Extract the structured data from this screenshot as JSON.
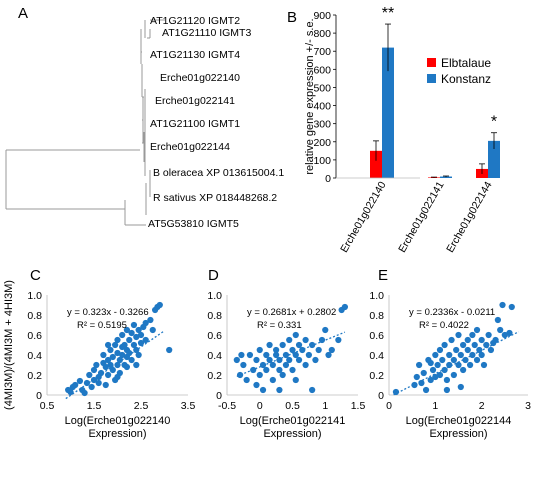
{
  "panel_letters": [
    "A",
    "B",
    "C",
    "D",
    "E"
  ],
  "tree": {
    "leaves": [
      "AT1G21120 IGMT2",
      "AT1G21110 IGMT3",
      "AT1G21130 IGMT4",
      "Erche01g022140",
      "Erche01g022141",
      "AT1G21100 IGMT1",
      "Erche01g022144",
      "B oleracea XP 013615004.1",
      "R sativus XP 018448268.2",
      "AT5G53810 IGMT5"
    ]
  },
  "colors": {
    "elbtalaue": "#ff0000",
    "konstanz": "#1f78c4",
    "points": "#1f78c4",
    "axis": "#000000"
  },
  "chart_data": [
    {
      "type": "bar",
      "panel": "B",
      "categories": [
        "Erche01g022140",
        "Erche01g022141",
        "Erche01g022144"
      ],
      "series": [
        {
          "name": "Elbtalaue",
          "values": [
            150,
            3,
            50
          ],
          "errors": [
            55,
            2,
            28
          ]
        },
        {
          "name": "Konstanz",
          "values": [
            720,
            8,
            205
          ],
          "errors": [
            130,
            3,
            45
          ]
        }
      ],
      "significance": [
        "**",
        "",
        "*"
      ],
      "ylabel": "relative gene expression +/- s.e.",
      "ylim": [
        0,
        900
      ],
      "yticks": [
        0,
        100,
        200,
        300,
        400,
        500,
        600,
        700,
        800,
        900
      ],
      "legend_position": "right",
      "grid": false
    },
    {
      "type": "scatter",
      "panel": "C",
      "xlabel": "Log(Erche01g022140 Expression)",
      "ylabel": "(4MI3M)/(4MI3M + 4HI3M)",
      "xlim": [
        0.5,
        3.5
      ],
      "ylim": [
        0,
        1
      ],
      "xticks": [
        "0.5",
        "1.5",
        "2.5",
        "3.5"
      ],
      "yticks": [
        "0",
        "0.2",
        "0.4",
        "0.6",
        "0.8",
        "1.0"
      ],
      "equation": "y = 0.323x - 0.3266",
      "r2": "R² = 0.5195",
      "trend": {
        "slope": 0.323,
        "intercept": -0.3266,
        "x_range": [
          0.9,
          3.0
        ]
      },
      "points": [
        [
          0.95,
          0.05
        ],
        [
          1.0,
          0.03
        ],
        [
          1.05,
          0.08
        ],
        [
          1.1,
          0.1
        ],
        [
          1.2,
          0.14
        ],
        [
          1.25,
          0.05
        ],
        [
          1.3,
          0.02
        ],
        [
          1.35,
          0.12
        ],
        [
          1.4,
          0.2
        ],
        [
          1.45,
          0.08
        ],
        [
          1.5,
          0.15
        ],
        [
          1.5,
          0.25
        ],
        [
          1.55,
          0.3
        ],
        [
          1.6,
          0.18
        ],
        [
          1.6,
          0.12
        ],
        [
          1.65,
          0.22
        ],
        [
          1.7,
          0.32
        ],
        [
          1.7,
          0.4
        ],
        [
          1.75,
          0.1
        ],
        [
          1.75,
          0.28
        ],
        [
          1.8,
          0.35
        ],
        [
          1.8,
          0.2
        ],
        [
          1.85,
          0.45
        ],
        [
          1.85,
          0.3
        ],
        [
          1.9,
          0.25
        ],
        [
          1.9,
          0.38
        ],
        [
          1.95,
          0.5
        ],
        [
          1.95,
          0.15
        ],
        [
          2.0,
          0.3
        ],
        [
          2.0,
          0.42
        ],
        [
          2.0,
          0.55
        ],
        [
          2.05,
          0.35
        ],
        [
          2.05,
          0.22
        ],
        [
          2.1,
          0.48
        ],
        [
          2.1,
          0.4
        ],
        [
          2.1,
          0.6
        ],
        [
          2.15,
          0.3
        ],
        [
          2.15,
          0.5
        ],
        [
          2.2,
          0.38
        ],
        [
          2.2,
          0.45
        ],
        [
          2.2,
          0.28
        ],
        [
          2.25,
          0.55
        ],
        [
          2.25,
          0.42
        ],
        [
          2.3,
          0.62
        ],
        [
          2.3,
          0.35
        ],
        [
          2.35,
          0.5
        ],
        [
          2.35,
          0.7
        ],
        [
          2.4,
          0.45
        ],
        [
          2.4,
          0.58
        ],
        [
          2.45,
          0.65
        ],
        [
          2.45,
          0.4
        ],
        [
          2.5,
          0.52
        ],
        [
          2.5,
          0.6
        ],
        [
          2.55,
          0.68
        ],
        [
          2.6,
          0.72
        ],
        [
          2.6,
          0.55
        ],
        [
          2.7,
          0.75
        ],
        [
          2.75,
          0.65
        ],
        [
          2.8,
          0.85
        ],
        [
          2.85,
          0.88
        ],
        [
          2.9,
          0.9
        ],
        [
          3.1,
          0.45
        ],
        [
          2.0,
          0.18
        ],
        [
          1.8,
          0.5
        ],
        [
          2.2,
          0.65
        ],
        [
          2.4,
          0.3
        ]
      ]
    },
    {
      "type": "scatter",
      "panel": "D",
      "xlabel": "Log(Erche01g022141 Expression)",
      "xlim": [
        -0.5,
        1.5
      ],
      "ylim": [
        0,
        1
      ],
      "xticks": [
        "-0.5",
        "0",
        "0.5",
        "1",
        "1.5"
      ],
      "yticks": [
        "0",
        "0.2",
        "0.4",
        "0.6",
        "0.8",
        "1.0"
      ],
      "equation": "y = 0.2681x + 0.2802",
      "r2": "R² = 0.331",
      "trend": {
        "slope": 0.2681,
        "intercept": 0.2802,
        "x_range": [
          -0.35,
          1.3
        ]
      },
      "points": [
        [
          -0.35,
          0.35
        ],
        [
          -0.3,
          0.2
        ],
        [
          -0.28,
          0.4
        ],
        [
          -0.25,
          0.3
        ],
        [
          -0.2,
          0.15
        ],
        [
          -0.15,
          0.4
        ],
        [
          -0.1,
          0.25
        ],
        [
          -0.05,
          0.1
        ],
        [
          -0.05,
          0.35
        ],
        [
          0.0,
          0.2
        ],
        [
          0.0,
          0.45
        ],
        [
          0.05,
          0.3
        ],
        [
          0.05,
          0.05
        ],
        [
          0.1,
          0.4
        ],
        [
          0.1,
          0.25
        ],
        [
          0.15,
          0.35
        ],
        [
          0.15,
          0.5
        ],
        [
          0.2,
          0.3
        ],
        [
          0.2,
          0.15
        ],
        [
          0.25,
          0.45
        ],
        [
          0.25,
          0.4
        ],
        [
          0.3,
          0.35
        ],
        [
          0.3,
          0.25
        ],
        [
          0.35,
          0.5
        ],
        [
          0.35,
          0.2
        ],
        [
          0.4,
          0.4
        ],
        [
          0.4,
          0.3
        ],
        [
          0.45,
          0.55
        ],
        [
          0.45,
          0.35
        ],
        [
          0.5,
          0.45
        ],
        [
          0.5,
          0.25
        ],
        [
          0.55,
          0.4
        ],
        [
          0.55,
          0.6
        ],
        [
          0.6,
          0.35
        ],
        [
          0.6,
          0.5
        ],
        [
          0.65,
          0.45
        ],
        [
          0.7,
          0.3
        ],
        [
          0.7,
          0.55
        ],
        [
          0.75,
          0.4
        ],
        [
          0.8,
          0.5
        ],
        [
          0.8,
          0.05
        ],
        [
          0.85,
          0.35
        ],
        [
          0.9,
          0.45
        ],
        [
          0.95,
          0.55
        ],
        [
          1.0,
          0.65
        ],
        [
          1.05,
          0.4
        ],
        [
          1.1,
          0.45
        ],
        [
          1.2,
          0.55
        ],
        [
          1.25,
          0.85
        ],
        [
          1.3,
          0.88
        ],
        [
          0.3,
          0.05
        ],
        [
          0.55,
          0.15
        ]
      ]
    },
    {
      "type": "scatter",
      "panel": "E",
      "xlabel": "Log(Erche01g022144 Expression)",
      "xlim": [
        0,
        3
      ],
      "ylim": [
        0,
        1
      ],
      "xticks": [
        "0",
        "1",
        "2",
        "3"
      ],
      "yticks": [
        "0",
        "0.2",
        "0.4",
        "0.6",
        "0.8",
        "1.0"
      ],
      "equation": "y = 0.2336x - 0.0211",
      "r2": "R² = 0.4022",
      "trend": {
        "slope": 0.2336,
        "intercept": -0.0211,
        "x_range": [
          0.1,
          2.8
        ]
      },
      "points": [
        [
          0.15,
          0.03
        ],
        [
          0.55,
          0.1
        ],
        [
          0.6,
          0.18
        ],
        [
          0.65,
          0.3
        ],
        [
          0.7,
          0.12
        ],
        [
          0.75,
          0.22
        ],
        [
          0.8,
          0.05
        ],
        [
          0.85,
          0.35
        ],
        [
          0.9,
          0.15
        ],
        [
          0.95,
          0.25
        ],
        [
          1.0,
          0.4
        ],
        [
          1.0,
          0.18
        ],
        [
          1.05,
          0.3
        ],
        [
          1.1,
          0.45
        ],
        [
          1.1,
          0.2
        ],
        [
          1.15,
          0.35
        ],
        [
          1.2,
          0.25
        ],
        [
          1.2,
          0.5
        ],
        [
          1.25,
          0.15
        ],
        [
          1.3,
          0.4
        ],
        [
          1.3,
          0.3
        ],
        [
          1.35,
          0.55
        ],
        [
          1.4,
          0.35
        ],
        [
          1.4,
          0.2
        ],
        [
          1.45,
          0.45
        ],
        [
          1.5,
          0.3
        ],
        [
          1.5,
          0.6
        ],
        [
          1.55,
          0.4
        ],
        [
          1.6,
          0.5
        ],
        [
          1.6,
          0.25
        ],
        [
          1.65,
          0.35
        ],
        [
          1.7,
          0.55
        ],
        [
          1.7,
          0.45
        ],
        [
          1.75,
          0.3
        ],
        [
          1.8,
          0.6
        ],
        [
          1.8,
          0.4
        ],
        [
          1.85,
          0.5
        ],
        [
          1.9,
          0.35
        ],
        [
          1.9,
          0.65
        ],
        [
          1.95,
          0.45
        ],
        [
          2.0,
          0.55
        ],
        [
          2.0,
          0.4
        ],
        [
          2.05,
          0.3
        ],
        [
          2.1,
          0.5
        ],
        [
          2.15,
          0.6
        ],
        [
          2.2,
          0.45
        ],
        [
          2.3,
          0.55
        ],
        [
          2.35,
          0.75
        ],
        [
          2.4,
          0.65
        ],
        [
          2.45,
          0.9
        ],
        [
          2.5,
          0.6
        ],
        [
          2.6,
          0.62
        ],
        [
          2.65,
          0.88
        ],
        [
          1.25,
          0.05
        ],
        [
          0.9,
          0.32
        ],
        [
          1.55,
          0.08
        ],
        [
          2.25,
          0.52
        ]
      ]
    }
  ]
}
